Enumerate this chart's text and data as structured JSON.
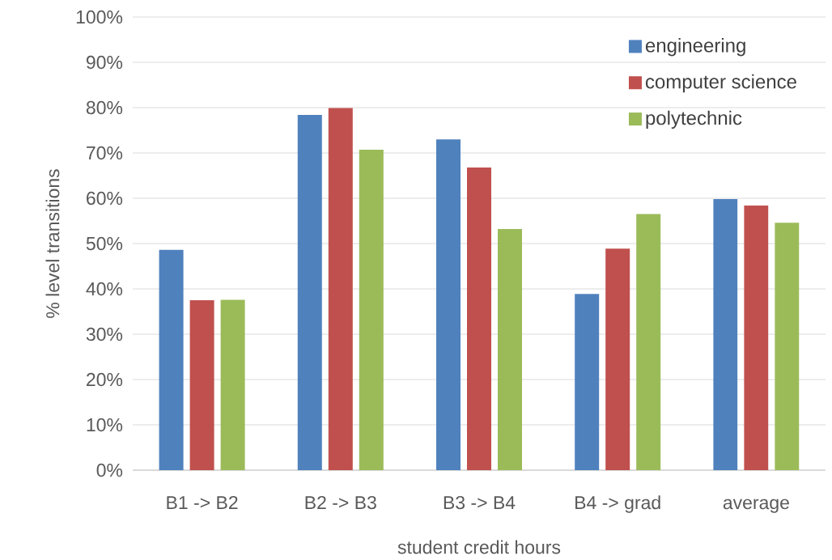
{
  "chart_data": {
    "type": "bar",
    "xlabel": "student credit hours",
    "ylabel": "% level transitions",
    "categories": [
      "B1 -> B2",
      "B2 -> B3",
      "B3 -> B4",
      "B4 -> grad",
      "average"
    ],
    "series": [
      {
        "name": "engineering",
        "color": "#4f81bd",
        "values": [
          48.6,
          78.4,
          73.0,
          38.9,
          59.8
        ]
      },
      {
        "name": "computer science",
        "color": "#c0504d",
        "values": [
          37.5,
          79.9,
          66.8,
          48.9,
          58.4
        ]
      },
      {
        "name": "polytechnic",
        "color": "#9bbb59",
        "values": [
          37.6,
          70.7,
          53.2,
          56.5,
          54.6
        ]
      }
    ],
    "ylim": [
      0,
      100
    ],
    "yticks": [
      {
        "value": 0,
        "label": "0%"
      },
      {
        "value": 10,
        "label": "10%"
      },
      {
        "value": 20,
        "label": "20%"
      },
      {
        "value": 30,
        "label": "30%"
      },
      {
        "value": 40,
        "label": "40%"
      },
      {
        "value": 50,
        "label": "50%"
      },
      {
        "value": 60,
        "label": "60%"
      },
      {
        "value": 70,
        "label": "70%"
      },
      {
        "value": 80,
        "label": "80%"
      },
      {
        "value": 90,
        "label": "90%"
      },
      {
        "value": 100,
        "label": "100%"
      }
    ],
    "grid": "y",
    "legend": "top right"
  }
}
